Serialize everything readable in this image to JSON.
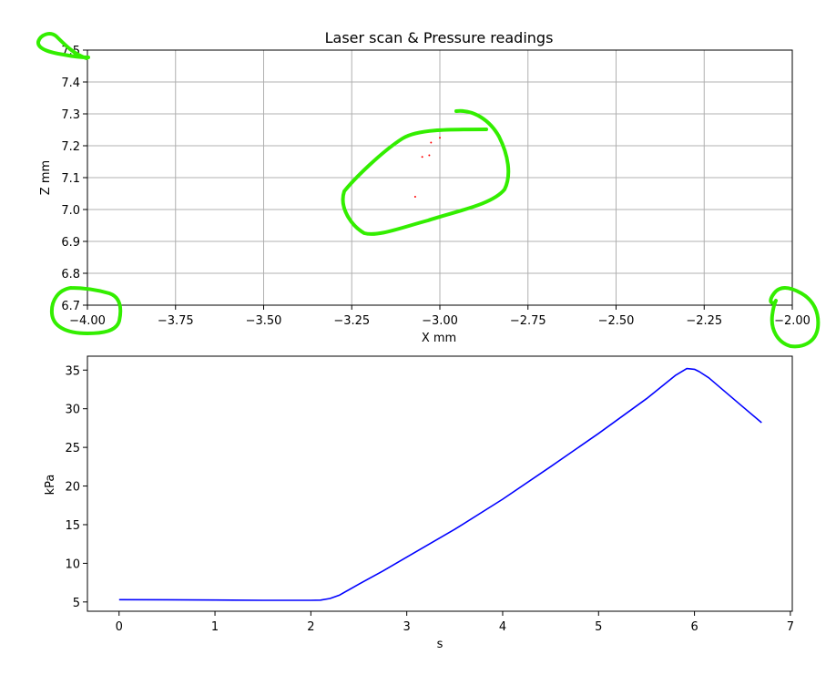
{
  "figure_title": "Laser scan & Pressure readings",
  "chart_data": [
    {
      "type": "scatter",
      "title": "Laser scan & Pressure readings",
      "xlabel": "X mm",
      "ylabel": "Z mm",
      "xlim": [
        -4.0,
        -2.0
      ],
      "ylim": [
        6.7,
        7.5
      ],
      "grid": true,
      "x_ticks": [
        -4.0,
        -3.75,
        -3.5,
        -3.25,
        -3.0,
        -2.75,
        -2.5,
        -2.25,
        -2.0
      ],
      "x_tick_labels": [
        "−4.00",
        "−3.75",
        "−3.50",
        "−3.25",
        "−3.00",
        "−2.75",
        "−2.50",
        "−2.25",
        "−2.00"
      ],
      "y_ticks": [
        6.7,
        6.8,
        6.9,
        7.0,
        7.1,
        7.2,
        7.3,
        7.4,
        7.5
      ],
      "y_tick_labels": [
        "6.7",
        "6.8",
        "6.9",
        "7.0",
        "7.1",
        "7.2",
        "7.3",
        "7.4",
        "7.5"
      ],
      "series": [
        {
          "color": "#ff0000",
          "points": [
            {
              "x": -3.07,
              "y": 7.04
            },
            {
              "x": -3.05,
              "y": 7.165
            },
            {
              "x": -3.03,
              "y": 7.17
            },
            {
              "x": -3.025,
              "y": 7.21
            },
            {
              "x": -3.0,
              "y": 7.225
            }
          ]
        }
      ]
    },
    {
      "type": "line",
      "title": "",
      "xlabel": "s",
      "ylabel": "kPa",
      "xlim": [
        -0.33,
        7.02
      ],
      "ylim": [
        3.8,
        36.8
      ],
      "grid": false,
      "x_ticks": [
        0,
        1,
        2,
        3,
        4,
        5,
        6,
        7
      ],
      "x_tick_labels": [
        "0",
        "1",
        "2",
        "3",
        "4",
        "5",
        "6",
        "7"
      ],
      "y_ticks": [
        5,
        10,
        15,
        20,
        25,
        30,
        35
      ],
      "y_tick_labels": [
        "5",
        "10",
        "15",
        "20",
        "25",
        "30",
        "35"
      ],
      "series": [
        {
          "color": "#0000ff",
          "x": [
            0,
            0.5,
            1.0,
            1.5,
            2.0,
            2.1,
            2.2,
            2.3,
            2.5,
            2.75,
            3.0,
            3.5,
            4.0,
            4.5,
            5.0,
            5.5,
            5.8,
            5.92,
            6.0,
            6.05,
            6.15,
            6.3,
            6.5,
            6.7
          ],
          "y": [
            5.3,
            5.28,
            5.25,
            5.22,
            5.22,
            5.24,
            5.45,
            5.9,
            7.3,
            9.0,
            10.8,
            14.4,
            18.3,
            22.5,
            26.8,
            31.3,
            34.3,
            35.2,
            35.1,
            34.8,
            34.0,
            32.4,
            30.3,
            28.2
          ]
        }
      ]
    }
  ],
  "annotations": {
    "stroke_color": "#33ee00"
  }
}
